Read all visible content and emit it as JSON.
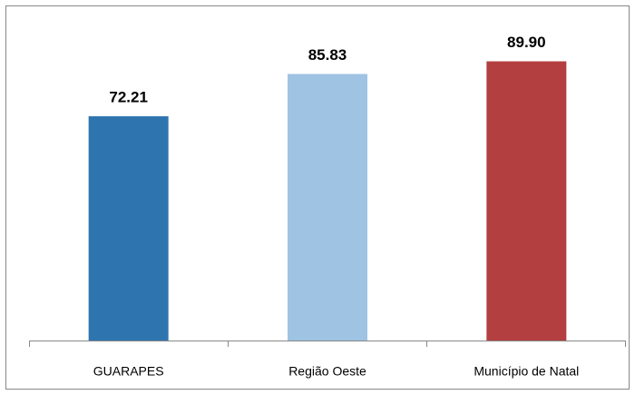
{
  "chart_data": {
    "type": "bar",
    "categories": [
      "GUARAPES",
      "Região Oeste",
      "Município de Natal"
    ],
    "values": [
      72.21,
      85.83,
      89.9
    ],
    "value_labels": [
      "72.21",
      "85.83",
      "89.90"
    ],
    "colors": [
      "#2e75b0",
      "#9fc3e3",
      "#b43f40"
    ],
    "ylim": [
      0,
      100
    ]
  }
}
